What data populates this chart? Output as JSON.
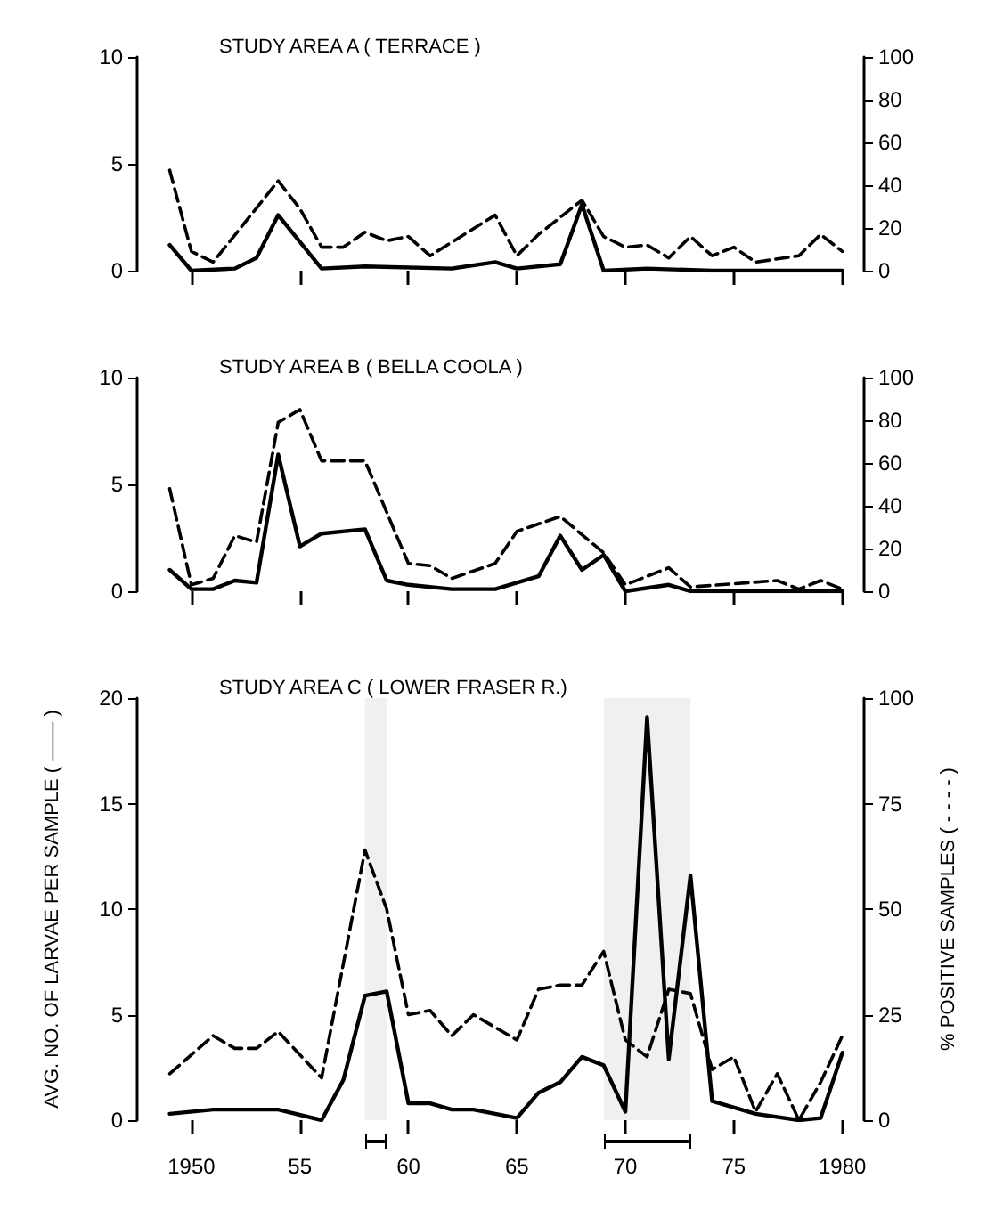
{
  "chart_data": [
    {
      "type": "line",
      "title": "STUDY AREA A ( TERRACE )",
      "xlim": [
        1947.5,
        1981
      ],
      "xticks": [
        {
          "value": 1950,
          "label": null
        },
        {
          "value": 1955,
          "label": null
        },
        {
          "value": 1960,
          "label": null
        },
        {
          "value": 1965,
          "label": null
        },
        {
          "value": 1970,
          "label": null
        },
        {
          "value": 1975,
          "label": null
        },
        {
          "value": 1980,
          "label": null
        }
      ],
      "ylim": [
        0,
        10
      ],
      "yticks": [
        0,
        5,
        10
      ],
      "y2lim": [
        0,
        100
      ],
      "y2ticks": [
        0,
        20,
        40,
        60,
        80,
        100
      ],
      "tick_labels": "y",
      "grid": false,
      "marker": "none",
      "series": [
        {
          "color": "#000000",
          "line_style": "solid",
          "x": [
            1949,
            1950,
            1952,
            1953,
            1954,
            1956,
            1958,
            1962,
            1964,
            1965,
            1967,
            1968,
            1969,
            1971,
            1974,
            1980
          ],
          "values": [
            1.2,
            0,
            0.1,
            0.6,
            2.6,
            0.1,
            0.2,
            0.1,
            0.4,
            0.1,
            0.3,
            3.1,
            0,
            0.1,
            0,
            0
          ]
        },
        {
          "color": "#000000",
          "line_style": "dashed",
          "axis": "y2",
          "x": [
            1949,
            1950,
            1951,
            1954,
            1955,
            1956,
            1957,
            1958,
            1959,
            1960,
            1961,
            1964,
            1965,
            1966,
            1968,
            1969,
            1970,
            1971,
            1972,
            1973,
            1974,
            1975,
            1976,
            1978,
            1979,
            1980
          ],
          "values": [
            47,
            9,
            4,
            42,
            29,
            11,
            11,
            18,
            14,
            16,
            7,
            26,
            7,
            17,
            33,
            16,
            11,
            12,
            6,
            16,
            7,
            11,
            4,
            7,
            17,
            9
          ]
        }
      ]
    },
    {
      "type": "line",
      "title": "STUDY AREA B ( BELLA COOLA )",
      "xlim": [
        1947.5,
        1981
      ],
      "xticks": [
        {
          "value": 1950,
          "label": null
        },
        {
          "value": 1955,
          "label": null
        },
        {
          "value": 1960,
          "label": null
        },
        {
          "value": 1965,
          "label": null
        },
        {
          "value": 1970,
          "label": null
        },
        {
          "value": 1975,
          "label": null
        },
        {
          "value": 1980,
          "label": null
        }
      ],
      "ylim": [
        0,
        10
      ],
      "yticks": [
        0,
        5,
        10
      ],
      "y2lim": [
        0,
        100
      ],
      "y2ticks": [
        0,
        20,
        40,
        60,
        80,
        100
      ],
      "tick_labels": "y",
      "grid": false,
      "marker": "none",
      "series": [
        {
          "color": "#000000",
          "line_style": "solid",
          "x": [
            1949,
            1950,
            1951,
            1952,
            1953,
            1954,
            1955,
            1956,
            1958,
            1959,
            1960,
            1962,
            1964,
            1966,
            1967,
            1968,
            1969,
            1970,
            1972,
            1973,
            1980
          ],
          "values": [
            1.0,
            0.1,
            0.1,
            0.5,
            0.4,
            6.4,
            2.1,
            2.7,
            2.9,
            0.5,
            0.3,
            0.1,
            0.1,
            0.7,
            2.6,
            1.0,
            1.7,
            0,
            0.3,
            0,
            0
          ]
        },
        {
          "color": "#000000",
          "line_style": "dashed",
          "axis": "y2",
          "x": [
            1949,
            1950,
            1951,
            1952,
            1953,
            1954,
            1955,
            1956,
            1958,
            1960,
            1961,
            1962,
            1964,
            1965,
            1967,
            1969,
            1970,
            1972,
            1973,
            1977,
            1978,
            1979,
            1980
          ],
          "values": [
            48,
            3,
            6,
            26,
            23,
            79,
            85,
            61,
            61,
            13,
            12,
            6,
            13,
            28,
            35,
            18,
            3,
            11,
            2,
            5,
            1,
            5,
            1
          ]
        }
      ]
    },
    {
      "type": "line",
      "title": "STUDY AREA C ( LOWER FRASER R.)",
      "ylabel": "AVG. NO. OF LARVAE PER SAMPLE ( —— )",
      "y2label": "% POSITIVE SAMPLES ( - - - - )",
      "xlim": [
        1947.5,
        1981
      ],
      "xticks": [
        1950,
        {
          "value": 1955,
          "label": "55"
        },
        {
          "value": 1960,
          "label": "60"
        },
        {
          "value": 1965,
          "label": "65"
        },
        {
          "value": 1970,
          "label": "70"
        },
        {
          "value": 1975,
          "label": "75"
        },
        1980
      ],
      "ylim": [
        0,
        20
      ],
      "yticks": [
        0,
        5,
        10,
        15,
        20
      ],
      "y2lim": [
        0,
        100
      ],
      "y2ticks": [
        0,
        25,
        50,
        75,
        100
      ],
      "grid": false,
      "marker": "none",
      "bands": [
        {
          "axis": "x",
          "from": 1958,
          "to": 1959
        },
        {
          "axis": "x",
          "from": 1969,
          "to": 1973
        }
      ],
      "series": [
        {
          "color": "#000000",
          "line_style": "solid",
          "x": [
            1949,
            1951,
            1954,
            1956,
            1957,
            1958,
            1959,
            1960,
            1961,
            1962,
            1963,
            1965,
            1966,
            1967,
            1968,
            1969,
            1970,
            1971,
            1972,
            1973,
            1974,
            1976,
            1978,
            1979,
            1980
          ],
          "values": [
            0.3,
            0.5,
            0.5,
            0,
            1.9,
            5.9,
            6.1,
            0.8,
            0.8,
            0.5,
            0.5,
            0.1,
            1.3,
            1.8,
            3.0,
            2.6,
            0.4,
            19.1,
            2.9,
            11.6,
            0.9,
            0.3,
            0,
            0.1,
            3.2
          ]
        },
        {
          "color": "#000000",
          "line_style": "dashed",
          "axis": "y2",
          "x": [
            1949,
            1951,
            1952,
            1953,
            1954,
            1956,
            1958,
            1959,
            1960,
            1961,
            1962,
            1963,
            1965,
            1966,
            1967,
            1968,
            1969,
            1970,
            1971,
            1972,
            1973,
            1974,
            1975,
            1976,
            1977,
            1978,
            1979,
            1980
          ],
          "values": [
            11,
            20,
            17,
            17,
            21,
            10,
            64,
            50,
            25,
            26,
            20,
            25,
            19,
            31,
            32,
            32,
            40,
            19,
            15,
            31,
            30,
            12,
            15,
            2,
            11,
            0,
            9,
            20
          ]
        }
      ]
    }
  ]
}
